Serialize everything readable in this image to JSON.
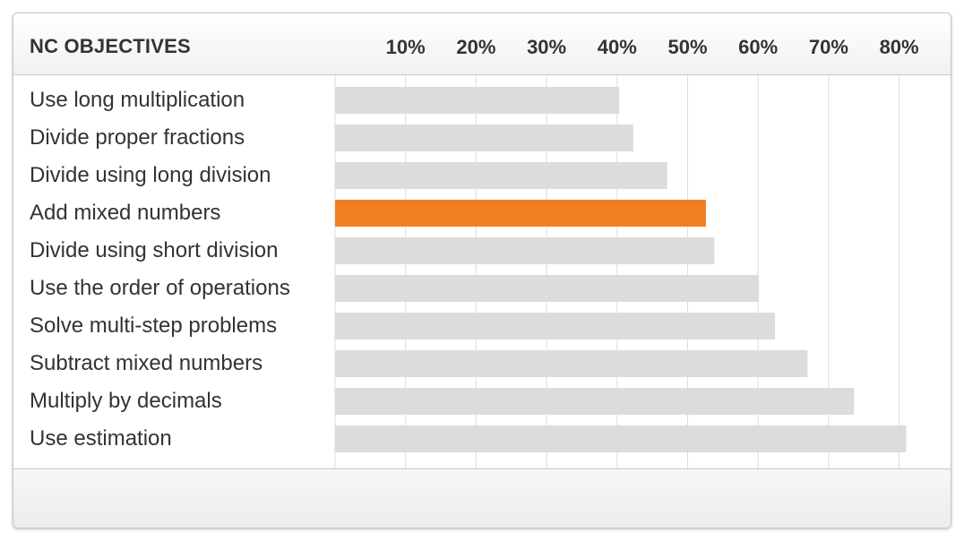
{
  "chart_data": {
    "type": "bar",
    "orientation": "horizontal",
    "title": "",
    "category_header": "NC OBJECTIVES",
    "xlabel": "",
    "ylabel": "",
    "x_ticks": [
      "10%",
      "20%",
      "30%",
      "40%",
      "50%",
      "60%",
      "70%",
      "80%"
    ],
    "xlim": [
      0,
      80
    ],
    "grid": true,
    "legend": "none",
    "categories": [
      "Use long multiplication",
      "Divide proper fractions",
      "Divide using long division",
      "Add mixed numbers",
      "Divide using short division",
      "Use the order of operations",
      "Solve multi-step problems",
      "Subtract mixed numbers",
      "Multiply by decimals",
      "Use estimation"
    ],
    "values": [
      40.3,
      42.3,
      47.1,
      52.6,
      53.8,
      60.1,
      62.4,
      67.0,
      73.6,
      81.0
    ],
    "highlight_index": 3,
    "colors": {
      "bar": "#dcdcdc",
      "highlight": "#f07f22",
      "grid": "#dddddd",
      "text": "#333333"
    }
  }
}
